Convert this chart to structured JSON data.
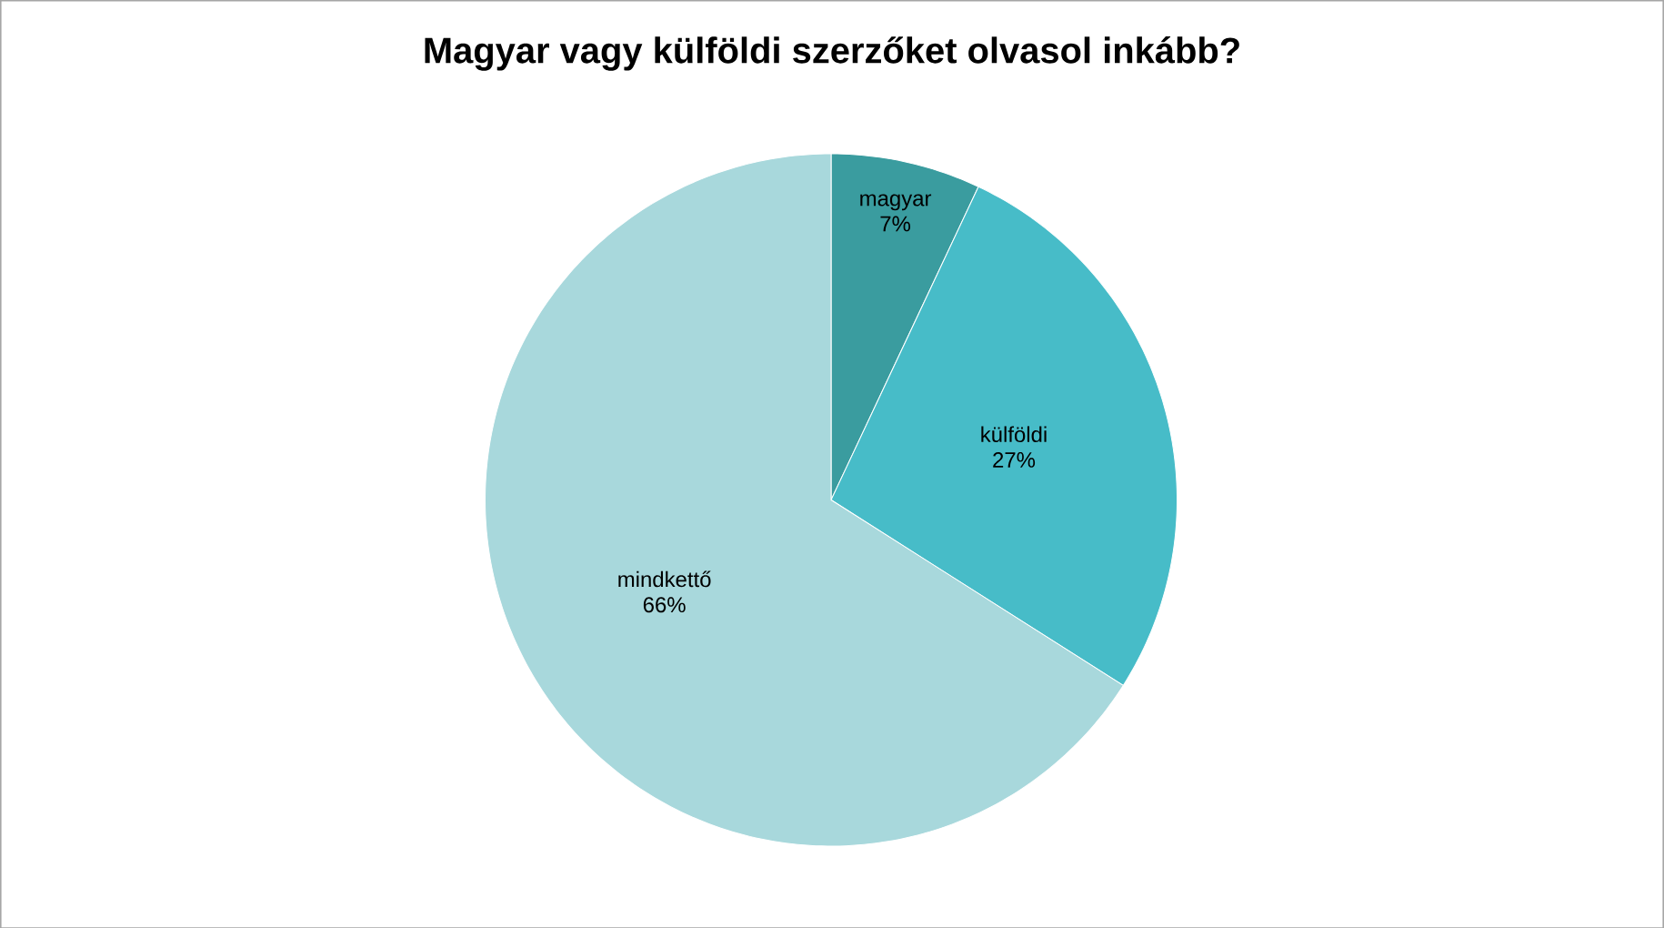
{
  "chart_data": {
    "type": "pie",
    "title": "Magyar vagy külföldi szerzőket olvasol inkább?",
    "categories": [
      "magyar",
      "külföldi",
      "mindkettő"
    ],
    "values": [
      7,
      27,
      66
    ],
    "value_labels": [
      "7%",
      "27%",
      "66%"
    ],
    "colors": [
      "#3a9c9f",
      "#47bcc8",
      "#a8d8dc"
    ]
  }
}
